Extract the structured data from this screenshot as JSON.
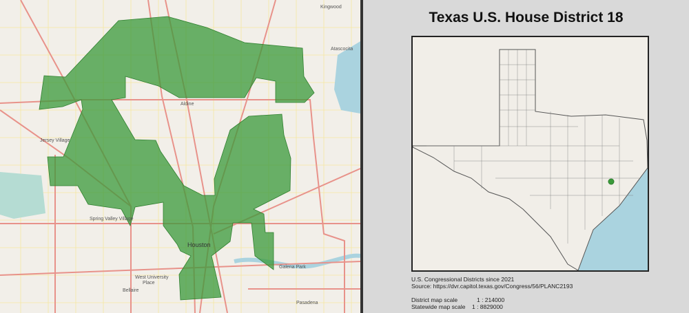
{
  "title": "Texas U.S. House District  18",
  "info": {
    "line1": "U.S. Congressional Districts since 2021",
    "line2": "Source: https://dvr.capitol.texas.gov/Congress/56/PLANC2193",
    "district_scale_label": "District map scale",
    "district_scale_value": "1 : 214000",
    "statewide_scale_label": "Statewide map scale",
    "statewide_scale_value": "1 : 8829000"
  },
  "map_labels": {
    "houston": "Houston",
    "aldine": "Aldine",
    "galena_park": "Galena Park",
    "pasadena": "Pasadena",
    "west_university": "West University",
    "place": "Place",
    "bellaire": "Bellaire",
    "jersey_village": "Jersey Village",
    "atascocita": "Atascocita",
    "kingwood": "Kingwood",
    "spring_valley": "Spring Valley Village"
  },
  "colors": {
    "district_fill": "#3a9a3a",
    "map_background": "#f2efe9",
    "highway": "#e8928a",
    "water": "#aad3df",
    "panel_background": "#d9d9d9"
  }
}
